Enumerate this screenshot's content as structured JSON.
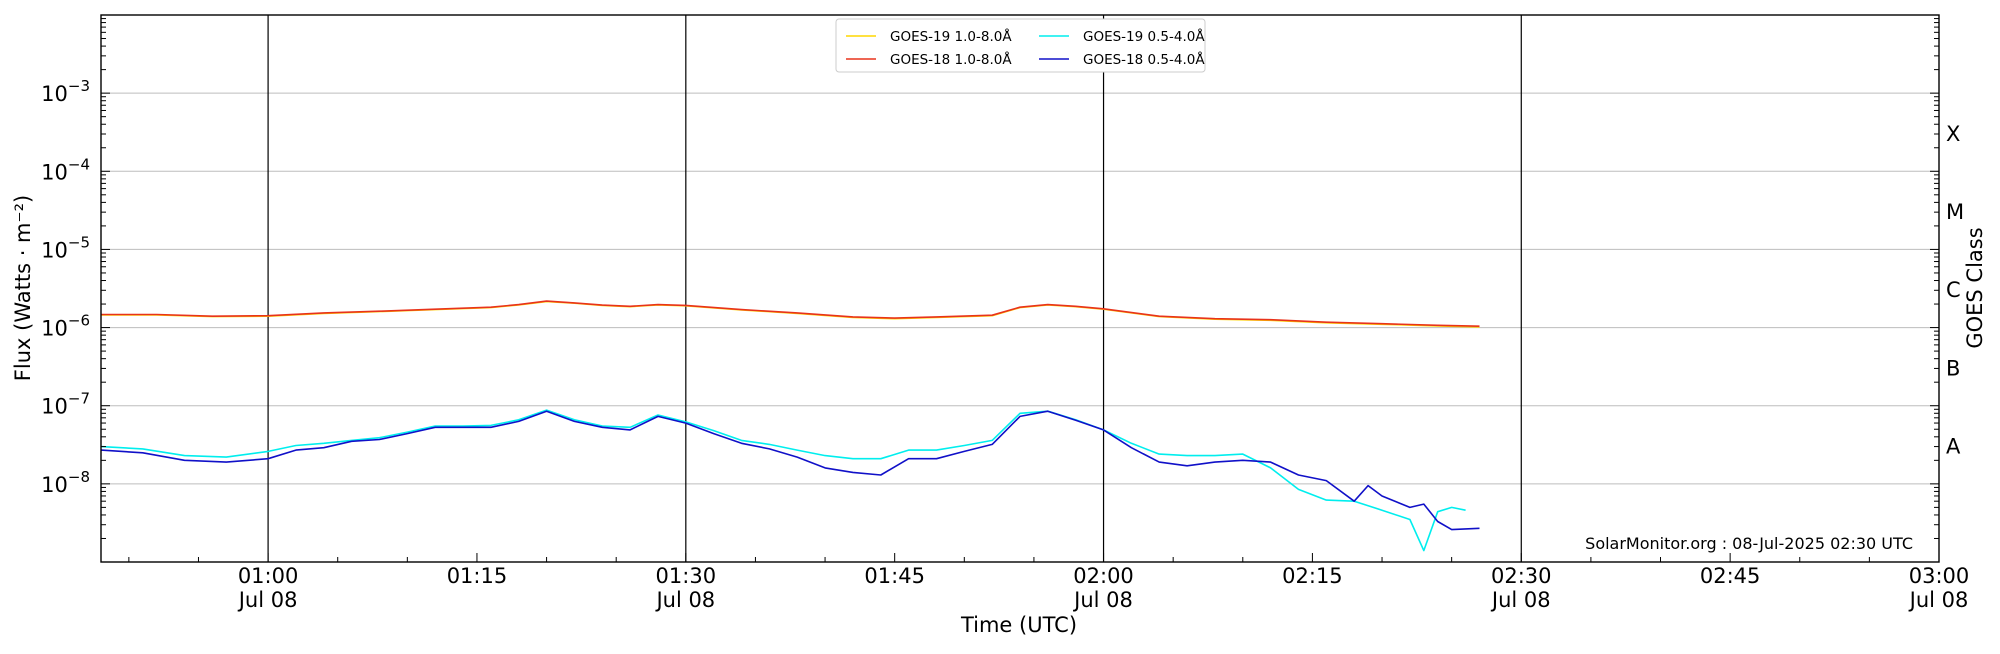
{
  "chart_data": {
    "type": "line",
    "title": "",
    "xlabel": "Time (UTC)",
    "ylabel": "Flux (Watts · m⁻²)",
    "ylabel_right": "GOES Class",
    "y_scale": "log",
    "ylim": [
      1e-09,
      0.01
    ],
    "xlim": [
      "00:48",
      "03:00"
    ],
    "grid": "horizontal at decades",
    "vertical_lines_at": [
      "01:00",
      "01:30",
      "02:00",
      "02:30"
    ],
    "legend_location": "upper center",
    "annotation": "SolarMonitor.org : 08-Jul-2025 02:30 UTC",
    "y_ticks": [
      {
        "value": 1e-08,
        "base": "10",
        "exp": "−8"
      },
      {
        "value": 1e-07,
        "base": "10",
        "exp": "−7"
      },
      {
        "value": 1e-06,
        "base": "10",
        "exp": "−6"
      },
      {
        "value": 1e-05,
        "base": "10",
        "exp": "−5"
      },
      {
        "value": 0.0001,
        "base": "10",
        "exp": "−4"
      },
      {
        "value": 0.001,
        "base": "10",
        "exp": "−3"
      }
    ],
    "x_ticks": [
      {
        "time": "01:00",
        "line1": "01:00",
        "line2": "Jul 08"
      },
      {
        "time": "01:15",
        "line1": "01:15",
        "line2": ""
      },
      {
        "time": "01:30",
        "line1": "01:30",
        "line2": "Jul 08"
      },
      {
        "time": "01:45",
        "line1": "01:45",
        "line2": ""
      },
      {
        "time": "02:00",
        "line1": "02:00",
        "line2": "Jul 08"
      },
      {
        "time": "02:15",
        "line1": "02:15",
        "line2": ""
      },
      {
        "time": "02:30",
        "line1": "02:30",
        "line2": "Jul 08"
      },
      {
        "time": "02:45",
        "line1": "02:45",
        "line2": ""
      },
      {
        "time": "03:00",
        "line1": "03:00",
        "line2": "Jul 08"
      }
    ],
    "goes_classes": [
      {
        "label": "X",
        "flux": 0.00031
      },
      {
        "label": "M",
        "flux": 3.1e-05
      },
      {
        "label": "C",
        "flux": 3.1e-06
      },
      {
        "label": "B",
        "flux": 3.1e-07
      },
      {
        "label": "A",
        "flux": 3.1e-08
      }
    ],
    "series": [
      {
        "name": "GOES-19 1.0-8.0Å",
        "color": "#ffd700",
        "x": [
          "00:48",
          "00:52",
          "00:56",
          "01:00",
          "01:04",
          "01:08",
          "01:12",
          "01:16",
          "01:18",
          "01:20",
          "01:22",
          "01:24",
          "01:26",
          "01:28",
          "01:30",
          "01:34",
          "01:38",
          "01:42",
          "01:45",
          "01:48",
          "01:52",
          "01:54",
          "01:56",
          "01:58",
          "02:00",
          "02:04",
          "02:08",
          "02:12",
          "02:16",
          "02:20",
          "02:24",
          "02:27"
        ],
        "values": [
          1.45e-06,
          1.45e-06,
          1.38e-06,
          1.4e-06,
          1.52e-06,
          1.6e-06,
          1.7e-06,
          1.8e-06,
          1.95e-06,
          2.15e-06,
          2.05e-06,
          1.92e-06,
          1.85e-06,
          1.95e-06,
          1.9e-06,
          1.68e-06,
          1.52e-06,
          1.35e-06,
          1.3e-06,
          1.35e-06,
          1.42e-06,
          1.8e-06,
          1.95e-06,
          1.85e-06,
          1.72e-06,
          1.38e-06,
          1.28e-06,
          1.24e-06,
          1.15e-06,
          1.1e-06,
          1.05e-06,
          1.02e-06
        ]
      },
      {
        "name": "GOES-18 1.0-8.0Å",
        "color": "#e8331b",
        "x": [
          "00:48",
          "00:52",
          "00:56",
          "01:00",
          "01:04",
          "01:08",
          "01:12",
          "01:16",
          "01:18",
          "01:20",
          "01:22",
          "01:24",
          "01:26",
          "01:28",
          "01:30",
          "01:34",
          "01:38",
          "01:42",
          "01:45",
          "01:48",
          "01:52",
          "01:54",
          "01:56",
          "01:58",
          "02:00",
          "02:04",
          "02:08",
          "02:12",
          "02:16",
          "02:20",
          "02:24",
          "02:27"
        ],
        "values": [
          1.47e-06,
          1.47e-06,
          1.4e-06,
          1.42e-06,
          1.54e-06,
          1.62e-06,
          1.72e-06,
          1.82e-06,
          1.97e-06,
          2.18e-06,
          2.07e-06,
          1.94e-06,
          1.87e-06,
          1.97e-06,
          1.92e-06,
          1.7e-06,
          1.54e-06,
          1.37e-06,
          1.32e-06,
          1.37e-06,
          1.44e-06,
          1.82e-06,
          1.97e-06,
          1.87e-06,
          1.74e-06,
          1.4e-06,
          1.3e-06,
          1.26e-06,
          1.17e-06,
          1.12e-06,
          1.07e-06,
          1.04e-06
        ]
      },
      {
        "name": "GOES-19 0.5-4.0Å",
        "color": "#00eeee",
        "x": [
          "00:48",
          "00:51",
          "00:54",
          "00:57",
          "01:00",
          "01:02",
          "01:04",
          "01:06",
          "01:08",
          "01:10",
          "01:12",
          "01:14",
          "01:16",
          "01:18",
          "01:20",
          "01:22",
          "01:24",
          "01:26",
          "01:28",
          "01:30",
          "01:32",
          "01:34",
          "01:36",
          "01:38",
          "01:40",
          "01:42",
          "01:44",
          "01:46",
          "01:48",
          "01:50",
          "01:52",
          "01:54",
          "01:56",
          "01:58",
          "02:00",
          "02:02",
          "02:04",
          "02:06",
          "02:08",
          "02:10",
          "02:12",
          "02:14",
          "02:16",
          "02:18",
          "02:20",
          "02:22",
          "02:23",
          "02:24",
          "02:25",
          "02:26"
        ],
        "values": [
          3e-08,
          2.8e-08,
          2.3e-08,
          2.2e-08,
          2.6e-08,
          3.1e-08,
          3.3e-08,
          3.6e-08,
          3.9e-08,
          4.6e-08,
          5.5e-08,
          5.5e-08,
          5.6e-08,
          6.6e-08,
          8.8e-08,
          6.6e-08,
          5.5e-08,
          5.3e-08,
          7.6e-08,
          6.2e-08,
          4.8e-08,
          3.6e-08,
          3.2e-08,
          2.7e-08,
          2.3e-08,
          2.1e-08,
          2.1e-08,
          2.7e-08,
          2.7e-08,
          3.1e-08,
          3.6e-08,
          8e-08,
          8.5e-08,
          6.6e-08,
          4.9e-08,
          3.3e-08,
          2.4e-08,
          2.3e-08,
          2.3e-08,
          2.4e-08,
          1.6e-08,
          8.5e-09,
          6.2e-09,
          6e-09,
          4.6e-09,
          3.5e-09,
          1.4e-09,
          4.4e-09,
          5e-09,
          4.6e-09
        ]
      },
      {
        "name": "GOES-18 0.5-4.0Å",
        "color": "#1010c8",
        "x": [
          "00:48",
          "00:51",
          "00:54",
          "00:57",
          "01:00",
          "01:02",
          "01:04",
          "01:06",
          "01:08",
          "01:10",
          "01:12",
          "01:14",
          "01:16",
          "01:18",
          "01:20",
          "01:22",
          "01:24",
          "01:26",
          "01:28",
          "01:30",
          "01:32",
          "01:34",
          "01:36",
          "01:38",
          "01:40",
          "01:42",
          "01:44",
          "01:46",
          "01:48",
          "01:50",
          "01:52",
          "01:54",
          "01:56",
          "01:58",
          "02:00",
          "02:02",
          "02:04",
          "02:06",
          "02:08",
          "02:10",
          "02:12",
          "02:14",
          "02:16",
          "02:18",
          "02:19",
          "02:20",
          "02:22",
          "02:23",
          "02:24",
          "02:25",
          "02:27"
        ],
        "values": [
          2.7e-08,
          2.5e-08,
          2e-08,
          1.9e-08,
          2.1e-08,
          2.7e-08,
          2.9e-08,
          3.5e-08,
          3.7e-08,
          4.4e-08,
          5.3e-08,
          5.3e-08,
          5.3e-08,
          6.3e-08,
          8.5e-08,
          6.3e-08,
          5.3e-08,
          4.9e-08,
          7.3e-08,
          6e-08,
          4.4e-08,
          3.3e-08,
          2.8e-08,
          2.2e-08,
          1.6e-08,
          1.4e-08,
          1.3e-08,
          2.1e-08,
          2.1e-08,
          2.6e-08,
          3.2e-08,
          7.3e-08,
          8.5e-08,
          6.5e-08,
          4.9e-08,
          2.9e-08,
          1.9e-08,
          1.7e-08,
          1.9e-08,
          2e-08,
          1.9e-08,
          1.3e-08,
          1.1e-08,
          6e-09,
          9.5e-09,
          7e-09,
          5e-09,
          5.5e-09,
          3.3e-09,
          2.6e-09,
          2.7e-09
        ]
      }
    ]
  }
}
